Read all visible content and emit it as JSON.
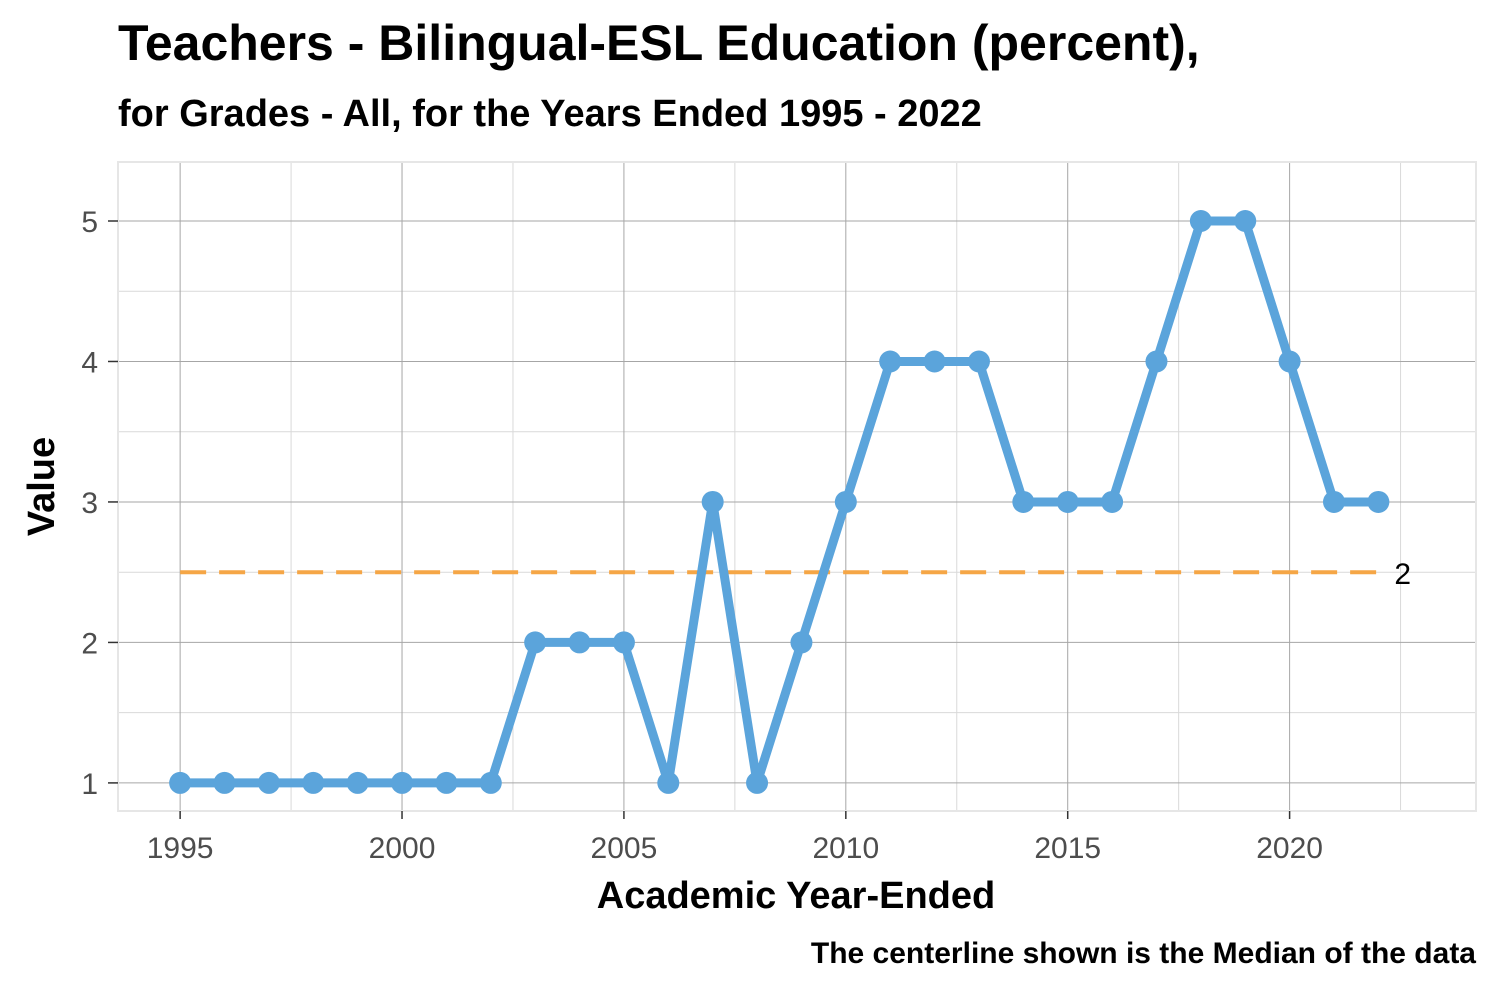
{
  "chart_data": {
    "type": "line",
    "title": "Teachers - Bilingual-ESL Education (percent),",
    "subtitle": "for Grades - All, for the Years Ended 1995  -  2022",
    "xlabel": "Academic Year-Ended",
    "ylabel": "Value",
    "caption": "The centerline shown is the Median of the data",
    "x": [
      1995,
      1996,
      1997,
      1998,
      1999,
      2000,
      2001,
      2002,
      2003,
      2004,
      2005,
      2006,
      2007,
      2008,
      2009,
      2010,
      2011,
      2012,
      2013,
      2014,
      2015,
      2016,
      2017,
      2018,
      2019,
      2020,
      2021,
      2022
    ],
    "series": [
      {
        "values": [
          1,
          1,
          1,
          1,
          1,
          1,
          1,
          1,
          2,
          2,
          2,
          1,
          3,
          1,
          2,
          3,
          4,
          4,
          4,
          3,
          3,
          3,
          4,
          5,
          5,
          4,
          3,
          3
        ]
      }
    ],
    "centerline": {
      "value": 2.5,
      "label": "2"
    },
    "xlim": [
      1993.6,
      2024.2
    ],
    "ylim": [
      0.8,
      5.42
    ],
    "x_ticks": [
      1995,
      2000,
      2005,
      2010,
      2015,
      2020
    ],
    "y_ticks": [
      1,
      2,
      3,
      4,
      5
    ],
    "grid": true,
    "legend": "none",
    "colors": {
      "line": "#5ba4db",
      "centerline": "#f5a646",
      "grid_major": "#a6a6a6",
      "grid_minor": "#d9d9d9",
      "panel_border": "#e6e6e6"
    }
  }
}
